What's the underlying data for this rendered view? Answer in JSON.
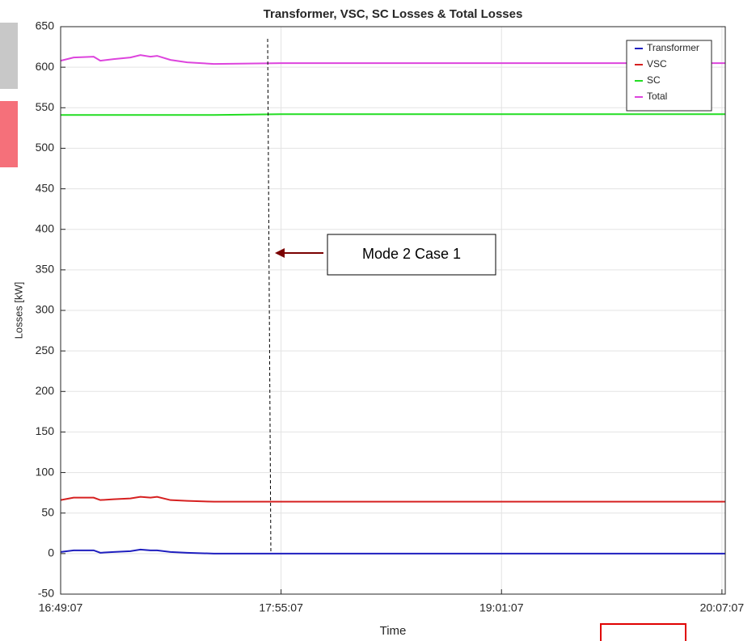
{
  "chart_data": {
    "type": "line",
    "title": "Transformer, VSC, SC Losses & Total Losses",
    "ylabel": "Losses [kW]",
    "xlabel": "Time",
    "annotation": "Mode 2 Case 1",
    "x": [
      "16:49:07",
      "16:53:00",
      "16:59:00",
      "17:01:00",
      "17:05:00",
      "17:10:00",
      "17:13:00",
      "17:16:00",
      "17:18:00",
      "17:22:00",
      "17:27:00",
      "17:35:00",
      "17:55:00",
      "20:08:07"
    ],
    "series": [
      {
        "name": "Transformer",
        "color": "#1f1fbf",
        "values": [
          2,
          4,
          4,
          1,
          2,
          3,
          5,
          4,
          4,
          2,
          1,
          0,
          0,
          0
        ]
      },
      {
        "name": "VSC",
        "color": "#d62020",
        "values": [
          66,
          69,
          69,
          66,
          67,
          68,
          70,
          69,
          70,
          66,
          65,
          64,
          64,
          64
        ]
      },
      {
        "name": "SC",
        "color": "#22dd22",
        "values": [
          541,
          541,
          541,
          541,
          541,
          541,
          541,
          541,
          541,
          541,
          541,
          541,
          542,
          542
        ]
      },
      {
        "name": "Total",
        "color": "#dd44dd",
        "values": [
          608,
          612,
          613,
          608,
          610,
          612,
          615,
          613,
          614,
          609,
          606,
          604,
          605,
          605
        ]
      }
    ],
    "xlim": [
      "16:49:07",
      "20:08:07"
    ],
    "xticks": [
      "16:49:07",
      "17:55:07",
      "19:01:07",
      "20:07:07"
    ],
    "ylim": [
      -50,
      650
    ],
    "yticks": [
      -50,
      0,
      50,
      100,
      150,
      200,
      250,
      300,
      350,
      400,
      450,
      500,
      550,
      600,
      650
    ],
    "grid": true,
    "legend": "upper right"
  }
}
